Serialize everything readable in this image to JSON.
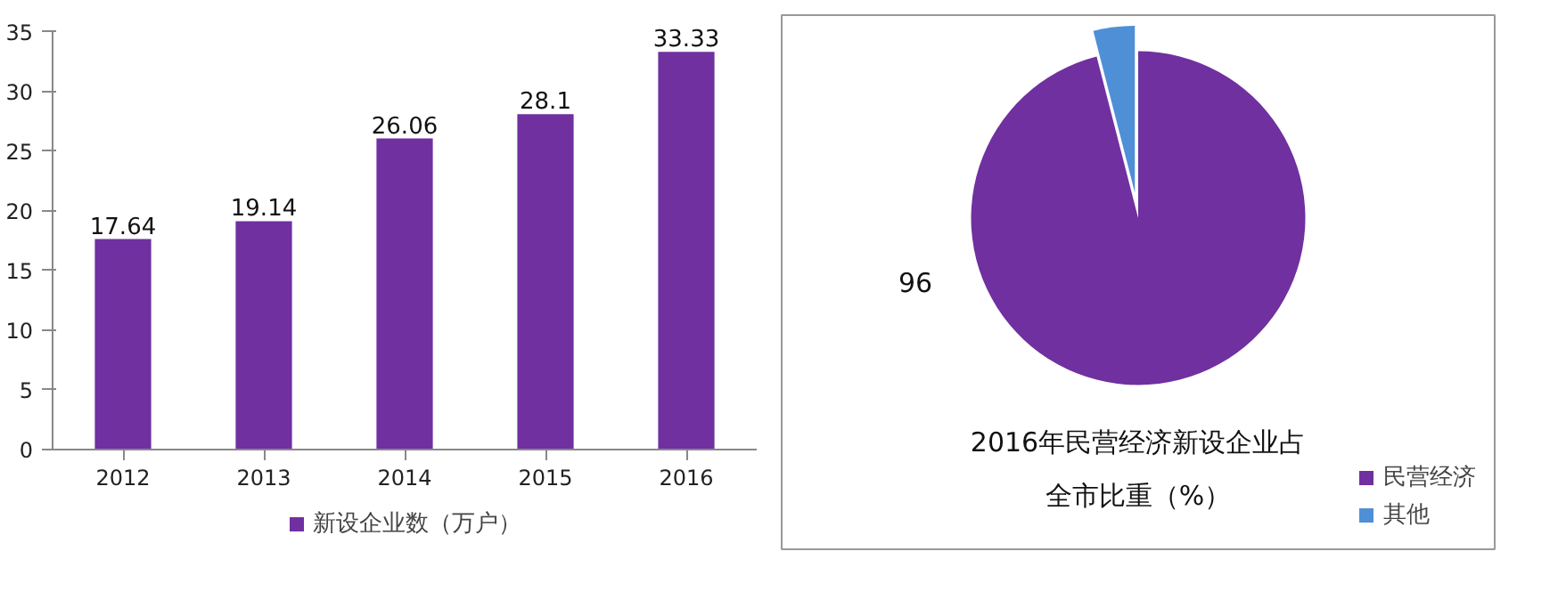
{
  "chart_data": [
    {
      "type": "bar",
      "categories": [
        "2012",
        "2013",
        "2014",
        "2015",
        "2016"
      ],
      "series": [
        {
          "name": "新设企业数（万户）",
          "color": "#7030a0",
          "values": [
            17.64,
            19.14,
            26.06,
            28.1,
            33.33
          ]
        }
      ],
      "ylim": [
        0,
        35
      ],
      "yticks": [
        0,
        5,
        10,
        15,
        20,
        25,
        30,
        35
      ],
      "grid": false,
      "legend": "bottom",
      "data_labels": true
    },
    {
      "type": "pie",
      "title": "2016年民营经济新设企业占全市比重（%）",
      "categories": [
        "民营经济",
        "其他"
      ],
      "values": [
        96,
        4
      ],
      "colors": [
        "#7030a0",
        "#4f8fd6"
      ],
      "value_labels": [
        "96",
        null
      ],
      "legend": "bottom right"
    }
  ]
}
